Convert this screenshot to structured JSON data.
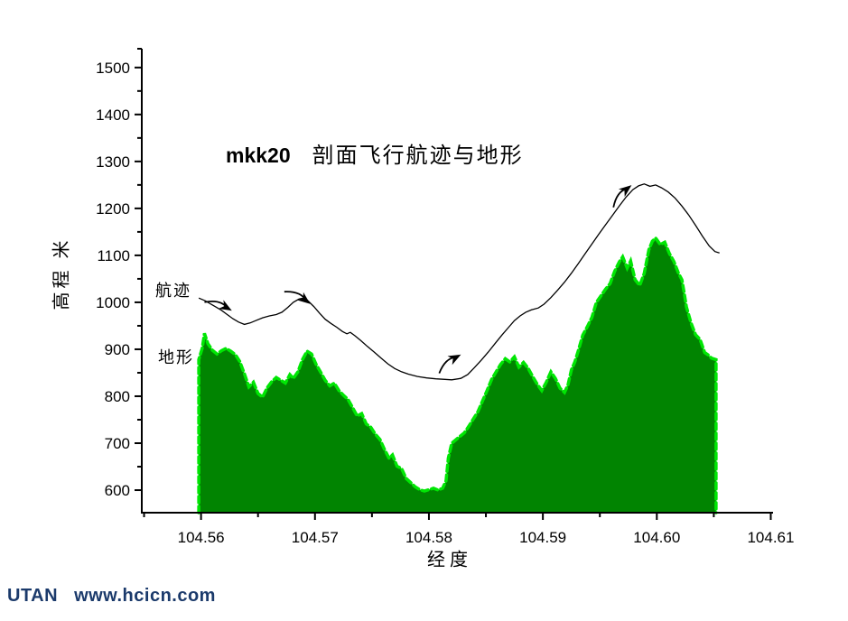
{
  "page": {
    "background": "#ffffff"
  },
  "chart": {
    "title_code": "mkk20",
    "title_text": "剖面飞行航迹与地形",
    "y_axis_title": "高程 米",
    "x_axis_title": "经度",
    "series_labels": {
      "trajectory": "航迹",
      "terrain": "地形"
    }
  },
  "footer": {
    "brand": "UTAN",
    "url": "www.hcicn.com",
    "color": "#1b3a6b"
  },
  "chart_data": {
    "type": "area+line",
    "title": "mkk20 剖面飞行航迹与地形",
    "xlabel": "经度",
    "ylabel": "高程 米",
    "xlim": [
      104.5548,
      104.6102
    ],
    "ylim": [
      552,
      1540
    ],
    "grid": false,
    "x_ticks_major": [
      104.56,
      104.57,
      104.58,
      104.59,
      104.6,
      104.61
    ],
    "x_ticks_minor": [
      104.555,
      104.565,
      104.575,
      104.585,
      104.595,
      104.605
    ],
    "y_ticks_major": [
      600,
      700,
      800,
      900,
      1000,
      1100,
      1200,
      1300,
      1400,
      1500
    ],
    "y_ticks_minor": [
      650,
      750,
      850,
      950,
      1050,
      1150,
      1250,
      1350,
      1450,
      1540
    ],
    "x_tick_decimals": 2,
    "colors": {
      "terrain_fill": "#018401",
      "terrain_edge": "#00e604",
      "trajectory": "#000000"
    },
    "series": [
      {
        "name": "地形",
        "type": "area",
        "points": [
          [
            104.5598,
            878
          ],
          [
            104.5601,
            902
          ],
          [
            104.5603,
            934
          ],
          [
            104.5606,
            912
          ],
          [
            104.561,
            898
          ],
          [
            104.5614,
            890
          ],
          [
            104.5618,
            897
          ],
          [
            104.5622,
            902
          ],
          [
            104.5626,
            896
          ],
          [
            104.563,
            889
          ],
          [
            104.5634,
            874
          ],
          [
            104.5638,
            848
          ],
          [
            104.5642,
            820
          ],
          [
            104.5646,
            830
          ],
          [
            104.565,
            806
          ],
          [
            104.5654,
            798
          ],
          [
            104.5658,
            818
          ],
          [
            104.5662,
            831
          ],
          [
            104.5666,
            840
          ],
          [
            104.567,
            834
          ],
          [
            104.5674,
            828
          ],
          [
            104.5678,
            846
          ],
          [
            104.5681,
            838
          ],
          [
            104.5685,
            852
          ],
          [
            104.5689,
            878
          ],
          [
            104.5693,
            896
          ],
          [
            104.5697,
            890
          ],
          [
            104.5701,
            868
          ],
          [
            104.5705,
            851
          ],
          [
            104.5709,
            834
          ],
          [
            104.5713,
            822
          ],
          [
            104.5717,
            828
          ],
          [
            104.5721,
            812
          ],
          [
            104.5725,
            802
          ],
          [
            104.5729,
            793
          ],
          [
            104.5733,
            776
          ],
          [
            104.5737,
            758
          ],
          [
            104.5741,
            763
          ],
          [
            104.5745,
            741
          ],
          [
            104.5749,
            734
          ],
          [
            104.5753,
            719
          ],
          [
            104.5757,
            708
          ],
          [
            104.5761,
            687
          ],
          [
            104.5765,
            668
          ],
          [
            104.5768,
            675
          ],
          [
            104.5772,
            651
          ],
          [
            104.5776,
            646
          ],
          [
            104.578,
            625
          ],
          [
            104.5784,
            616
          ],
          [
            104.5788,
            607
          ],
          [
            104.5792,
            601
          ],
          [
            104.5796,
            598
          ],
          [
            104.58,
            601
          ],
          [
            104.5804,
            604
          ],
          [
            104.5808,
            600
          ],
          [
            104.5812,
            604
          ],
          [
            104.5815,
            620
          ],
          [
            104.5817,
            668
          ],
          [
            104.582,
            700
          ],
          [
            104.5823,
            706
          ],
          [
            104.5827,
            714
          ],
          [
            104.5831,
            722
          ],
          [
            104.5835,
            736
          ],
          [
            104.5839,
            752
          ],
          [
            104.5843,
            767
          ],
          [
            104.5847,
            790
          ],
          [
            104.5851,
            812
          ],
          [
            104.5855,
            836
          ],
          [
            104.5859,
            852
          ],
          [
            104.5863,
            868
          ],
          [
            104.5867,
            880
          ],
          [
            104.5871,
            873
          ],
          [
            104.5875,
            884
          ],
          [
            104.5879,
            862
          ],
          [
            104.5883,
            872
          ],
          [
            104.5887,
            860
          ],
          [
            104.5891,
            842
          ],
          [
            104.5895,
            826
          ],
          [
            104.5899,
            812
          ],
          [
            104.5903,
            830
          ],
          [
            104.5907,
            852
          ],
          [
            104.5911,
            838
          ],
          [
            104.5915,
            817
          ],
          [
            104.5919,
            808
          ],
          [
            104.5922,
            824
          ],
          [
            104.5925,
            856
          ],
          [
            104.5928,
            873
          ],
          [
            104.5931,
            896
          ],
          [
            104.5935,
            930
          ],
          [
            104.5939,
            948
          ],
          [
            104.5943,
            968
          ],
          [
            104.5947,
            1000
          ],
          [
            104.5951,
            1014
          ],
          [
            104.5955,
            1028
          ],
          [
            104.5959,
            1040
          ],
          [
            104.5963,
            1066
          ],
          [
            104.5967,
            1086
          ],
          [
            104.597,
            1097
          ],
          [
            104.5974,
            1073
          ],
          [
            104.5977,
            1088
          ],
          [
            104.5981,
            1048
          ],
          [
            104.5985,
            1036
          ],
          [
            104.5989,
            1062
          ],
          [
            104.5993,
            1112
          ],
          [
            104.5996,
            1130
          ],
          [
            104.5999,
            1137
          ],
          [
            104.6003,
            1123
          ],
          [
            104.6007,
            1128
          ],
          [
            104.6011,
            1104
          ],
          [
            104.6015,
            1087
          ],
          [
            104.6019,
            1062
          ],
          [
            104.6022,
            1048
          ],
          [
            104.6024,
            1020
          ],
          [
            104.6026,
            990
          ],
          [
            104.603,
            956
          ],
          [
            104.6034,
            931
          ],
          [
            104.6038,
            921
          ],
          [
            104.6042,
            893
          ],
          [
            104.6045,
            888
          ],
          [
            104.6048,
            881
          ],
          [
            104.6052,
            878
          ]
        ]
      },
      {
        "name": "航迹",
        "type": "line",
        "points": [
          [
            104.5598,
            1009
          ],
          [
            104.5604,
            1003
          ],
          [
            104.5608,
            997
          ],
          [
            104.5613,
            990
          ],
          [
            104.5618,
            983
          ],
          [
            104.5623,
            974
          ],
          [
            104.5628,
            965
          ],
          [
            104.5633,
            958
          ],
          [
            104.5638,
            953
          ],
          [
            104.5643,
            956
          ],
          [
            104.5648,
            961
          ],
          [
            104.5654,
            967
          ],
          [
            104.566,
            971
          ],
          [
            104.5666,
            974
          ],
          [
            104.5671,
            979
          ],
          [
            104.5676,
            989
          ],
          [
            104.5681,
            1000
          ],
          [
            104.5686,
            1007
          ],
          [
            104.569,
            1009
          ],
          [
            104.5694,
            1003
          ],
          [
            104.5699,
            991
          ],
          [
            104.5704,
            977
          ],
          [
            104.5709,
            964
          ],
          [
            104.5714,
            955
          ],
          [
            104.5719,
            947
          ],
          [
            104.5724,
            938
          ],
          [
            104.5728,
            933
          ],
          [
            104.5731,
            936
          ],
          [
            104.5735,
            929
          ],
          [
            104.574,
            919
          ],
          [
            104.5746,
            906
          ],
          [
            104.5752,
            894
          ],
          [
            104.5758,
            881
          ],
          [
            104.5764,
            869
          ],
          [
            104.577,
            859
          ],
          [
            104.5776,
            852
          ],
          [
            104.5782,
            847
          ],
          [
            104.579,
            842
          ],
          [
            104.5798,
            839
          ],
          [
            104.5806,
            837
          ],
          [
            104.5814,
            836
          ],
          [
            104.582,
            835
          ],
          [
            104.5828,
            838
          ],
          [
            104.5834,
            846
          ],
          [
            104.584,
            861
          ],
          [
            104.5846,
            877
          ],
          [
            104.5852,
            894
          ],
          [
            104.5858,
            912
          ],
          [
            104.5864,
            930
          ],
          [
            104.587,
            947
          ],
          [
            104.5875,
            961
          ],
          [
            104.588,
            971
          ],
          [
            104.5885,
            979
          ],
          [
            104.589,
            984
          ],
          [
            104.5896,
            988
          ],
          [
            104.5901,
            996
          ],
          [
            104.5907,
            1010
          ],
          [
            104.5913,
            1026
          ],
          [
            104.5919,
            1043
          ],
          [
            104.5925,
            1062
          ],
          [
            104.5931,
            1082
          ],
          [
            104.5937,
            1103
          ],
          [
            104.5943,
            1124
          ],
          [
            104.5949,
            1145
          ],
          [
            104.5955,
            1165
          ],
          [
            104.5961,
            1185
          ],
          [
            104.5967,
            1205
          ],
          [
            104.5973,
            1224
          ],
          [
            104.5979,
            1240
          ],
          [
            104.5984,
            1248
          ],
          [
            104.5989,
            1252
          ],
          [
            104.5994,
            1247
          ],
          [
            104.5999,
            1250
          ],
          [
            104.6004,
            1244
          ],
          [
            104.601,
            1235
          ],
          [
            104.6016,
            1222
          ],
          [
            104.6022,
            1205
          ],
          [
            104.6028,
            1186
          ],
          [
            104.6034,
            1164
          ],
          [
            104.604,
            1141
          ],
          [
            104.6046,
            1120
          ],
          [
            104.6051,
            1108
          ],
          [
            104.6055,
            1105
          ]
        ]
      }
    ],
    "annotations": {
      "arrows": [
        {
          "x": 104.5625,
          "y": 985,
          "angle": 30
        },
        {
          "x": 104.5694,
          "y": 1000,
          "angle": 38
        },
        {
          "x": 104.5826,
          "y": 886,
          "angle": -28
        },
        {
          "x": 104.5976,
          "y": 1246,
          "angle": -38
        }
      ]
    }
  }
}
